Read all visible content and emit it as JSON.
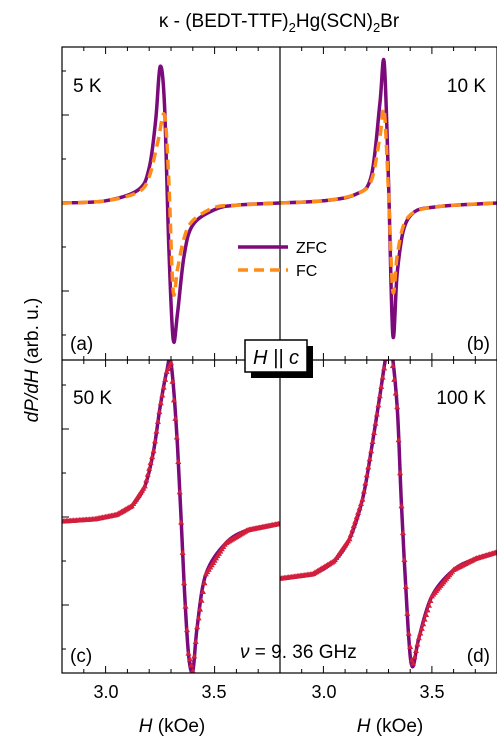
{
  "title": {
    "main": "κ - (BEDT-TTF)",
    "sub1": "2",
    "mid": "Hg(SCN)",
    "sub2": "2",
    "end": "Br"
  },
  "ylabel": {
    "italic": "dP/dH",
    "rest": " (arb. u.)"
  },
  "xlabel": {
    "italic": "H",
    "rest": " (kOe)"
  },
  "field_label": "H || c",
  "freq_label": {
    "symbol": "ν",
    "text": " = 9. 36 GHz"
  },
  "legend": {
    "zfc": "ZFC",
    "fc": "FC"
  },
  "colors": {
    "zfc": "#7b0a7b",
    "fc": "#ff8c1a",
    "marker": "#d21f3c"
  },
  "chart_data": [
    {
      "type": "line",
      "panel": "(a)",
      "temperature": "5 K",
      "xlim": [
        2.8,
        3.8
      ],
      "x_ticks": [
        "3.0",
        "3.5"
      ],
      "legend_position": "center-right",
      "series": [
        {
          "name": "ZFC",
          "style": "solid",
          "x": [
            2.8,
            3.0,
            3.15,
            3.2,
            3.23,
            3.25,
            3.27,
            3.29,
            3.31,
            3.33,
            3.36,
            3.4,
            3.5,
            3.6,
            3.8
          ],
          "y": [
            0.0,
            0.01,
            0.06,
            0.16,
            0.38,
            0.62,
            0.45,
            -0.2,
            -0.62,
            -0.5,
            -0.24,
            -0.1,
            -0.03,
            -0.01,
            0.0
          ]
        },
        {
          "name": "FC",
          "style": "dashed",
          "x": [
            2.8,
            3.0,
            3.15,
            3.2,
            3.24,
            3.27,
            3.29,
            3.31,
            3.33,
            3.36,
            3.4,
            3.5,
            3.6,
            3.8
          ],
          "y": [
            0.0,
            0.01,
            0.05,
            0.12,
            0.28,
            0.4,
            0.1,
            -0.4,
            -0.3,
            -0.16,
            -0.08,
            -0.02,
            -0.01,
            0.0
          ]
        }
      ]
    },
    {
      "type": "line",
      "panel": "(b)",
      "temperature": "10 K",
      "xlim": [
        2.8,
        3.8
      ],
      "x_ticks": [
        "3.0",
        "3.5"
      ],
      "series": [
        {
          "name": "ZFC",
          "style": "solid",
          "x": [
            2.8,
            3.0,
            3.15,
            3.22,
            3.26,
            3.28,
            3.3,
            3.32,
            3.34,
            3.37,
            3.42,
            3.5,
            3.6,
            3.8
          ],
          "y": [
            0.0,
            0.01,
            0.04,
            0.12,
            0.45,
            0.64,
            0.1,
            -0.6,
            -0.32,
            -0.12,
            -0.04,
            -0.02,
            -0.01,
            0.0
          ]
        },
        {
          "name": "FC",
          "style": "dashed",
          "x": [
            2.8,
            3.0,
            3.15,
            3.22,
            3.26,
            3.28,
            3.3,
            3.32,
            3.34,
            3.37,
            3.42,
            3.5,
            3.6,
            3.8
          ],
          "y": [
            0.0,
            0.01,
            0.04,
            0.1,
            0.3,
            0.42,
            0.05,
            -0.4,
            -0.24,
            -0.1,
            -0.04,
            -0.02,
            -0.01,
            0.0
          ]
        }
      ]
    },
    {
      "type": "line",
      "panel": "(c)",
      "temperature": "50 K",
      "xlim": [
        2.8,
        3.8
      ],
      "x_ticks": [
        "3.0",
        "3.5"
      ],
      "series": [
        {
          "name": "ZFC",
          "style": "solid",
          "x": [
            2.8,
            2.95,
            3.05,
            3.12,
            3.18,
            3.22,
            3.25,
            3.28,
            3.3,
            3.33,
            3.36,
            3.38,
            3.4,
            3.42,
            3.46,
            3.55,
            3.65,
            3.8
          ],
          "y": [
            -0.02,
            -0.01,
            0.01,
            0.05,
            0.14,
            0.3,
            0.5,
            0.66,
            0.7,
            0.32,
            -0.3,
            -0.62,
            -0.7,
            -0.5,
            -0.26,
            -0.12,
            -0.06,
            -0.03
          ]
        },
        {
          "name": "FC",
          "style": "markers",
          "x": [
            2.8,
            2.95,
            3.05,
            3.12,
            3.18,
            3.22,
            3.25,
            3.28,
            3.3,
            3.33,
            3.36,
            3.38,
            3.4,
            3.42,
            3.46,
            3.55,
            3.65,
            3.8
          ],
          "y": [
            -0.02,
            -0.01,
            0.01,
            0.05,
            0.14,
            0.3,
            0.5,
            0.66,
            0.7,
            0.32,
            -0.3,
            -0.62,
            -0.7,
            -0.5,
            -0.26,
            -0.12,
            -0.06,
            -0.03
          ]
        }
      ]
    },
    {
      "type": "line",
      "panel": "(d)",
      "temperature": "100 K",
      "xlim": [
        2.8,
        3.8
      ],
      "x_ticks": [
        "3.0",
        "3.5"
      ],
      "series": [
        {
          "name": "ZFC",
          "style": "solid",
          "x": [
            2.8,
            2.95,
            3.05,
            3.12,
            3.18,
            3.22,
            3.26,
            3.29,
            3.31,
            3.34,
            3.36,
            3.39,
            3.41,
            3.44,
            3.5,
            3.6,
            3.7,
            3.8
          ],
          "y": [
            -0.28,
            -0.26,
            -0.2,
            -0.1,
            0.08,
            0.3,
            0.55,
            0.74,
            0.78,
            0.5,
            0.05,
            -0.5,
            -0.68,
            -0.55,
            -0.36,
            -0.24,
            -0.19,
            -0.16
          ]
        },
        {
          "name": "FC",
          "style": "markers",
          "x": [
            2.8,
            2.95,
            3.05,
            3.12,
            3.18,
            3.22,
            3.26,
            3.29,
            3.31,
            3.34,
            3.36,
            3.39,
            3.41,
            3.44,
            3.5,
            3.6,
            3.7,
            3.8
          ],
          "y": [
            -0.28,
            -0.26,
            -0.2,
            -0.1,
            0.08,
            0.3,
            0.55,
            0.74,
            0.78,
            0.5,
            0.05,
            -0.5,
            -0.68,
            -0.55,
            -0.36,
            -0.24,
            -0.19,
            -0.16
          ]
        }
      ]
    }
  ]
}
